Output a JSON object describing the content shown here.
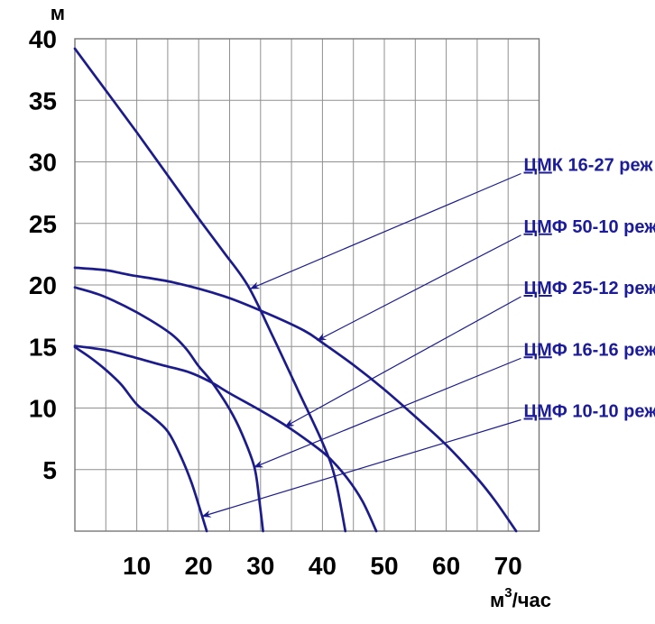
{
  "page": {
    "background": "#ffffff"
  },
  "colors": {
    "curve": "#1b1b8c",
    "annotation_text": "#1c1c9a",
    "grid": "#8f8f8f",
    "border": "#777777",
    "tick_text": "#000000"
  },
  "axes": {
    "y_title": "м",
    "x_title_main": "м",
    "x_title_sup": "3",
    "x_title_rest": "/час",
    "y_ticks": [
      40,
      35,
      30,
      25,
      20,
      15,
      10,
      5
    ],
    "x_ticks": [
      10,
      20,
      30,
      40,
      50,
      60,
      70
    ],
    "q_max": 75,
    "h_max": 40,
    "grid_step": 5
  },
  "chart_data": {
    "type": "line",
    "title": "",
    "xlabel": "м3/час",
    "ylabel": "м",
    "xlim": [
      0,
      75
    ],
    "ylim": [
      0,
      40
    ],
    "grid": true,
    "legend_position": "right-annotations",
    "series": [
      {
        "name": "ЦМК 16-27 реж",
        "points": [
          [
            0,
            39.2
          ],
          [
            5,
            35.8
          ],
          [
            10,
            32.4
          ],
          [
            15,
            28.9
          ],
          [
            20,
            25.4
          ],
          [
            24,
            22.7
          ],
          [
            28,
            19.9
          ],
          [
            32,
            15.8
          ],
          [
            36,
            11.5
          ],
          [
            40,
            7.2
          ],
          [
            42,
            4.4
          ],
          [
            43.7,
            0
          ]
        ]
      },
      {
        "name": "ЦМФ 50-10 реж",
        "points": [
          [
            0,
            21.4
          ],
          [
            5,
            21.2
          ],
          [
            9,
            20.8
          ],
          [
            16,
            20.2
          ],
          [
            24,
            19.1
          ],
          [
            31,
            17.7
          ],
          [
            37,
            16.3
          ],
          [
            40,
            15.3
          ],
          [
            45,
            13.5
          ],
          [
            50,
            11.5
          ],
          [
            55,
            9.3
          ],
          [
            60,
            7.0
          ],
          [
            65,
            4.3
          ],
          [
            68,
            2.4
          ],
          [
            71.3,
            0
          ]
        ]
      },
      {
        "name": "ЦМФ 25-12 реж",
        "points": [
          [
            0,
            15.05
          ],
          [
            5,
            14.7
          ],
          [
            9,
            14.2
          ],
          [
            14,
            13.5
          ],
          [
            18.5,
            12.9
          ],
          [
            22,
            12.1
          ],
          [
            25,
            11.2
          ],
          [
            30,
            9.8
          ],
          [
            34,
            8.6
          ],
          [
            38,
            7.2
          ],
          [
            41,
            6.0
          ],
          [
            44,
            4.3
          ],
          [
            46.5,
            2.4
          ],
          [
            48.7,
            0
          ]
        ]
      },
      {
        "name": "ЦМФ 16-16 реж",
        "points": [
          [
            0,
            19.8
          ],
          [
            4,
            19.2
          ],
          [
            8,
            18.3
          ],
          [
            12,
            17.2
          ],
          [
            15.6,
            16.0
          ],
          [
            18,
            14.8
          ],
          [
            20,
            13.4
          ],
          [
            22,
            12.2
          ],
          [
            25,
            9.9
          ],
          [
            27,
            7.9
          ],
          [
            29,
            5.2
          ],
          [
            29.8,
            2.5
          ],
          [
            30.4,
            0
          ]
        ]
      },
      {
        "name": "ЦМФ 10-10 реж",
        "points": [
          [
            0,
            14.95
          ],
          [
            2.5,
            14.1
          ],
          [
            5,
            13.1
          ],
          [
            7.5,
            11.9
          ],
          [
            10,
            10.3
          ],
          [
            12.5,
            9.3
          ],
          [
            15,
            8.1
          ],
          [
            17,
            6.2
          ],
          [
            18.8,
            4.0
          ],
          [
            20.2,
            1.8
          ],
          [
            21.3,
            0
          ]
        ]
      }
    ],
    "annotations": [
      {
        "text_prefix": "ЦМ",
        "text_rest": "К 16-27 реж",
        "label_head": 30,
        "target": [
          28.4,
          19.7
        ]
      },
      {
        "text_prefix": "ЦМ",
        "text_rest": "Ф 50-10 реж",
        "label_head": 25,
        "target": [
          39.2,
          15.5
        ]
      },
      {
        "text_prefix": "ЦМ",
        "text_rest": "Ф 25-12 реж",
        "label_head": 20,
        "target": [
          34.0,
          8.5
        ]
      },
      {
        "text_prefix": "ЦМ",
        "text_rest": "Ф 16-16 реж",
        "label_head": 15,
        "target": [
          29.0,
          5.2
        ]
      },
      {
        "text_prefix": "ЦМ",
        "text_rest": "Ф 10-10 реж",
        "label_head": 10,
        "target": [
          20.6,
          1.2
        ]
      }
    ]
  }
}
